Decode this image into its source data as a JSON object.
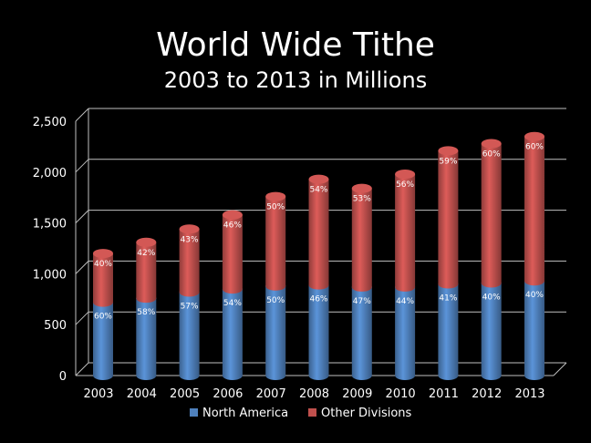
{
  "chart_data": {
    "type": "bar",
    "title": "World Wide Tithe",
    "subtitle": "2003 to 2013 in Millions",
    "categories": [
      "2003",
      "2004",
      "2005",
      "2006",
      "2007",
      "2008",
      "2009",
      "2010",
      "2011",
      "2012",
      "2013"
    ],
    "series": [
      {
        "name": "North America",
        "values": [
          720,
          760,
          820,
          850,
          880,
          890,
          870,
          870,
          900,
          910,
          930
        ],
        "percent_labels": [
          "60%",
          "58%",
          "57%",
          "54%",
          "50%",
          "46%",
          "47%",
          "44%",
          "41%",
          "40%",
          "40%"
        ],
        "color": "#4F81BD"
      },
      {
        "name": "Other Divisions",
        "values": [
          480,
          550,
          620,
          730,
          880,
          1040,
          970,
          1110,
          1310,
          1370,
          1420
        ],
        "percent_labels": [
          "40%",
          "42%",
          "43%",
          "46%",
          "50%",
          "54%",
          "53%",
          "56%",
          "59%",
          "60%",
          "60%"
        ],
        "color": "#C0504D"
      }
    ],
    "stacked": true,
    "ylim": [
      0,
      2500
    ],
    "yticks": [
      0,
      500,
      1000,
      1500,
      2000,
      2500
    ],
    "ytick_labels": [
      "0",
      "500",
      "1,000",
      "1,500",
      "2,000",
      "2,500"
    ],
    "grid": true,
    "legend_position": "bottom",
    "colors": {
      "background": "#000000",
      "text": "#ffffff",
      "grid": "#bfbfbf"
    }
  }
}
